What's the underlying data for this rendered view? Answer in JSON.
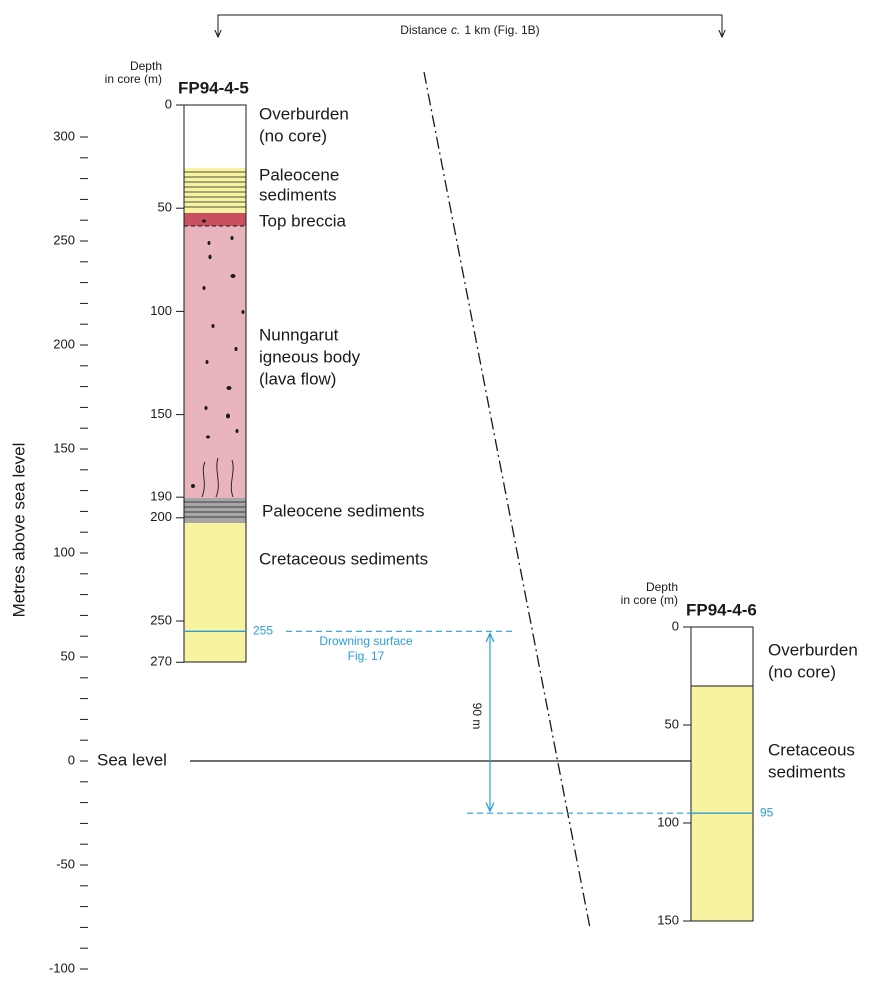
{
  "header": {
    "distance": [
      "Distance",
      "c.",
      "1 km (Fig. 1B)"
    ]
  },
  "axis": {
    "label": "Metres above sea level",
    "ticks": [
      300,
      250,
      200,
      150,
      100,
      50,
      0,
      -50,
      -100
    ],
    "sea_level": "Sea level"
  },
  "cores": [
    {
      "depth_label": [
        "Depth",
        "in core (m)"
      ],
      "name": "FP94-4-5",
      "depth_ticks": [
        0,
        50,
        100,
        150,
        190,
        200,
        250,
        270
      ],
      "layers": [
        {
          "lines": [
            "Overburden",
            "(no core)"
          ]
        },
        {
          "lines": [
            "Paleocene",
            "sediments"
          ]
        },
        {
          "lines": [
            "Top breccia"
          ]
        },
        {
          "lines": [
            "Nunngarut",
            "igneous body",
            "(lava flow)"
          ]
        },
        {
          "lines": [
            "Paleocene sediments"
          ]
        },
        {
          "lines": [
            "Cretaceous sediments"
          ]
        }
      ],
      "marker": 255
    },
    {
      "depth_label": [
        "Depth",
        "in core (m)"
      ],
      "name": "FP94-4-6",
      "depth_ticks": [
        0,
        50,
        100,
        150
      ],
      "layers": [
        {
          "lines": [
            "Overburden",
            "(no core)"
          ]
        },
        {
          "lines": [
            "Cretaceous",
            "sediments"
          ]
        }
      ],
      "marker": 95
    }
  ],
  "drowning_surface": {
    "lines": [
      "Drowning surface",
      "Fig. 17"
    ],
    "offset": "90 m"
  }
}
